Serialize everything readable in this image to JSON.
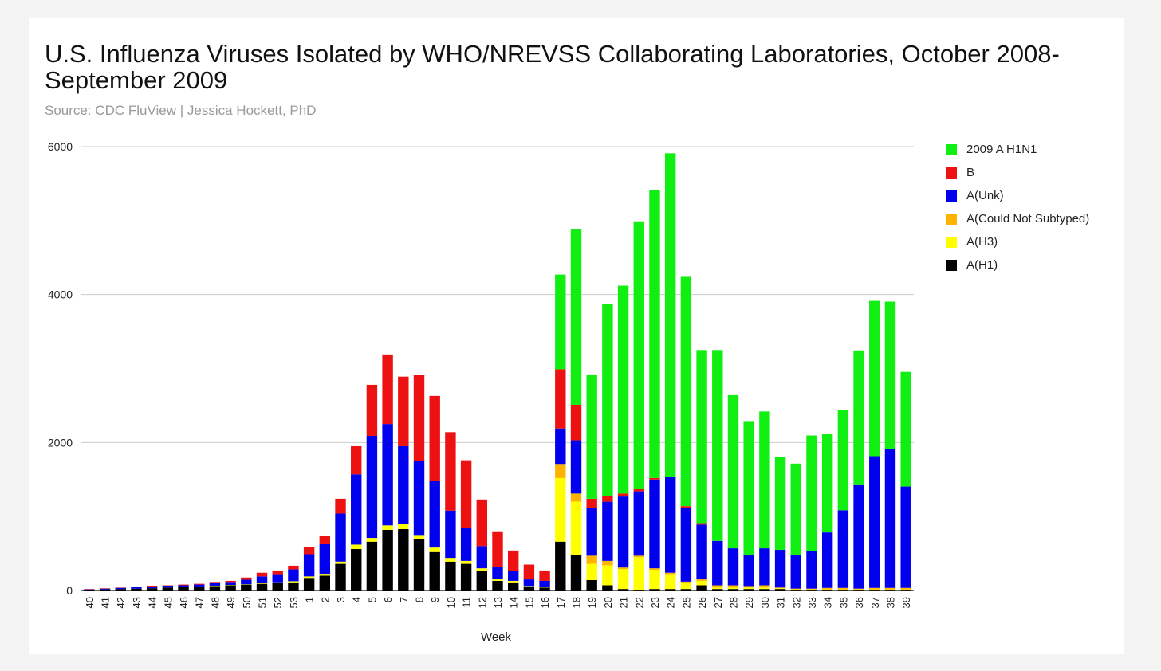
{
  "chart_data": {
    "type": "bar",
    "stacked": true,
    "title": "U.S. Influenza Viruses Isolated by WHO/NREVSS Collaborating Laboratories, October 2008-September 2009",
    "subtitle": "Source: CDC FluView | Jessica Hockett, PhD",
    "xlabel": "Week",
    "ylabel": "",
    "ylim": [
      0,
      6000
    ],
    "yticks": [
      0,
      2000,
      4000,
      6000
    ],
    "grid": true,
    "legend_position": "right",
    "categories": [
      "40",
      "41",
      "42",
      "43",
      "44",
      "45",
      "46",
      "47",
      "48",
      "49",
      "50",
      "51",
      "52",
      "53",
      "1",
      "2",
      "3",
      "4",
      "5",
      "6",
      "7",
      "8",
      "9",
      "10",
      "11",
      "12",
      "13",
      "14",
      "15",
      "16",
      "17",
      "18",
      "19",
      "20",
      "21",
      "22",
      "23",
      "24",
      "25",
      "26",
      "27",
      "28",
      "29",
      "30",
      "31",
      "32",
      "33",
      "34",
      "35",
      "36",
      "37",
      "38",
      "39"
    ],
    "series": [
      {
        "name": "A(H1)",
        "color": "#000000",
        "values": [
          10,
          15,
          20,
          25,
          30,
          40,
          45,
          50,
          60,
          70,
          80,
          90,
          100,
          110,
          170,
          200,
          360,
          560,
          660,
          820,
          830,
          700,
          520,
          390,
          360,
          270,
          130,
          110,
          50,
          40,
          660,
          480,
          140,
          70,
          20,
          10,
          20,
          20,
          20,
          70,
          20,
          20,
          20,
          20,
          20,
          10,
          10,
          10,
          10,
          10,
          10,
          10,
          10
        ]
      },
      {
        "name": "A(H3)",
        "color": "#ffff00",
        "values": [
          0,
          0,
          0,
          0,
          0,
          0,
          0,
          0,
          5,
          5,
          5,
          10,
          10,
          15,
          20,
          25,
          30,
          60,
          50,
          60,
          70,
          50,
          60,
          50,
          40,
          30,
          20,
          20,
          10,
          10,
          860,
          720,
          220,
          270,
          270,
          440,
          260,
          200,
          80,
          60,
          20,
          20,
          20,
          20,
          10,
          5,
          5,
          5,
          5,
          5,
          5,
          5,
          5
        ]
      },
      {
        "name": "A(Could Not Subtyped)",
        "color": "#ffb300",
        "values": [
          0,
          0,
          0,
          0,
          0,
          0,
          0,
          0,
          0,
          0,
          0,
          0,
          0,
          0,
          0,
          0,
          0,
          0,
          0,
          0,
          0,
          0,
          0,
          0,
          0,
          0,
          0,
          0,
          0,
          0,
          190,
          110,
          110,
          60,
          20,
          20,
          20,
          20,
          20,
          20,
          30,
          30,
          20,
          30,
          10,
          10,
          10,
          20,
          20,
          10,
          20,
          20,
          20
        ]
      },
      {
        "name": "A(Unk)",
        "color": "#0000ee",
        "values": [
          5,
          10,
          15,
          20,
          25,
          25,
          25,
          30,
          35,
          40,
          60,
          90,
          110,
          160,
          300,
          400,
          650,
          950,
          1380,
          1370,
          1050,
          1000,
          900,
          640,
          440,
          300,
          170,
          130,
          90,
          80,
          480,
          720,
          640,
          800,
          960,
          870,
          1200,
          1290,
          1000,
          740,
          600,
          500,
          420,
          500,
          510,
          450,
          510,
          750,
          1050,
          1410,
          1780,
          1880,
          1370
        ]
      },
      {
        "name": "B",
        "color": "#ee1111",
        "values": [
          5,
          5,
          5,
          5,
          10,
          5,
          10,
          10,
          15,
          15,
          30,
          50,
          50,
          50,
          100,
          110,
          200,
          380,
          690,
          940,
          940,
          1160,
          1150,
          1060,
          920,
          630,
          480,
          280,
          200,
          140,
          800,
          480,
          130,
          80,
          40,
          30,
          20,
          0,
          20,
          20,
          0,
          0,
          0,
          0,
          0,
          0,
          0,
          0,
          0,
          0,
          0,
          0,
          0
        ]
      },
      {
        "name": "2009 A H1N1",
        "color": "#11ee11",
        "values": [
          0,
          0,
          0,
          0,
          0,
          0,
          0,
          0,
          0,
          0,
          0,
          0,
          0,
          0,
          0,
          0,
          0,
          0,
          0,
          0,
          0,
          0,
          0,
          0,
          0,
          0,
          0,
          0,
          0,
          0,
          1280,
          2380,
          1680,
          2590,
          2810,
          3620,
          3890,
          4380,
          3110,
          2340,
          2580,
          2070,
          1810,
          1850,
          1260,
          1240,
          1560,
          1330,
          1360,
          1810,
          2100,
          1990,
          1550
        ]
      }
    ]
  },
  "legend": {
    "items": [
      {
        "label": "2009 A H1N1",
        "color": "#11ee11"
      },
      {
        "label": "B",
        "color": "#ee1111"
      },
      {
        "label": "A(Unk)",
        "color": "#0000ee"
      },
      {
        "label": "A(Could Not Subtyped)",
        "color": "#ffb300"
      },
      {
        "label": "A(H3)",
        "color": "#ffff00"
      },
      {
        "label": "A(H1)",
        "color": "#000000"
      }
    ]
  }
}
